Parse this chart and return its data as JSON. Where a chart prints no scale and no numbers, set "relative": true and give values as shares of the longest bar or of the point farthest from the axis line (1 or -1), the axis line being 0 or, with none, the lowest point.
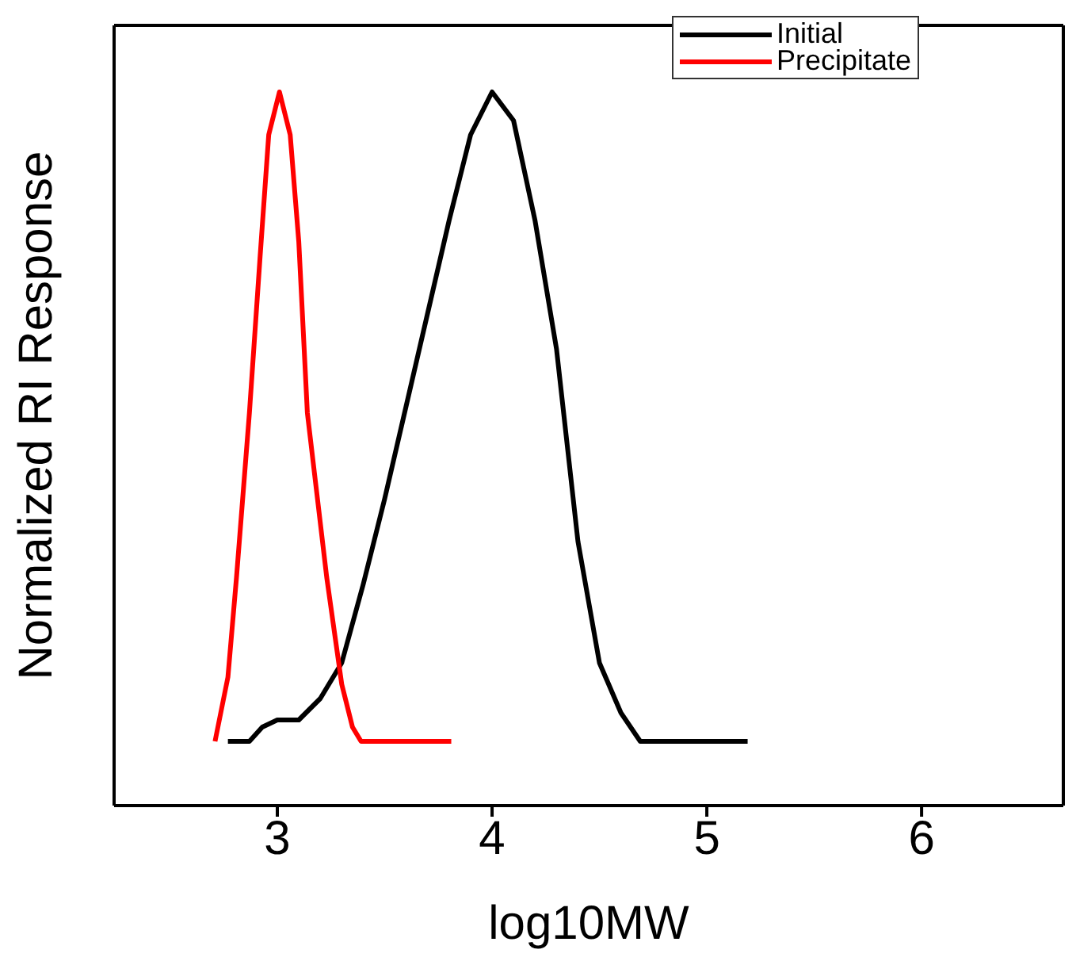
{
  "chart_data": {
    "type": "line",
    "xlabel": "log10MW",
    "ylabel": "Normalized RI Response",
    "relative": true,
    "xlim": [
      2.24,
      6.66
    ],
    "xticks": [
      3,
      4,
      5,
      6
    ],
    "legend": "top right",
    "grid": false,
    "marker": "none",
    "line_style": "solid",
    "series": [
      {
        "name": "Initial",
        "color": "#000000",
        "x": [
          2.77,
          2.87,
          2.93,
          3.0,
          3.1,
          3.2,
          3.3,
          3.4,
          3.5,
          3.6,
          3.7,
          3.8,
          3.9,
          4.0,
          4.1,
          4.2,
          4.3,
          4.4,
          4.5,
          4.6,
          4.69,
          5.19
        ],
        "values": [
          0.09,
          0.09,
          0.11,
          0.12,
          0.12,
          0.15,
          0.2,
          0.31,
          0.43,
          0.56,
          0.69,
          0.82,
          0.94,
          1,
          0.96,
          0.82,
          0.64,
          0.37,
          0.2,
          0.13,
          0.09,
          0.09
        ]
      },
      {
        "name": "Precipitate",
        "color": "#ff0000",
        "x": [
          2.71,
          2.77,
          2.81,
          2.87,
          2.92,
          2.96,
          3.01,
          3.06,
          3.1,
          3.14,
          3.23,
          3.3,
          3.35,
          3.39,
          3.81
        ],
        "values": [
          0.09,
          0.18,
          0.32,
          0.55,
          0.77,
          0.94,
          1,
          0.94,
          0.79,
          0.55,
          0.32,
          0.17,
          0.11,
          0.09,
          0.09
        ]
      }
    ]
  }
}
